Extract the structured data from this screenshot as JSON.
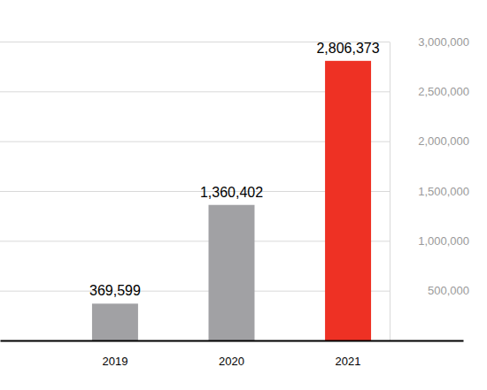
{
  "chart_data": {
    "type": "bar",
    "categories": [
      "2019",
      "2020",
      "2021"
    ],
    "values": [
      369599,
      1360402,
      2806373
    ],
    "value_labels": [
      "369,599",
      "1,360,402",
      "2,806,373"
    ],
    "colors": [
      "#a1a1a4",
      "#a1a1a4",
      "#ee3124"
    ],
    "ylim": [
      0,
      3000000
    ],
    "yticks": [
      {
        "value": 500000,
        "label": "500,000"
      },
      {
        "value": 1000000,
        "label": "1,000,000"
      },
      {
        "value": 1500000,
        "label": "1,500,000"
      },
      {
        "value": 2000000,
        "label": "2,000,000"
      },
      {
        "value": 2500000,
        "label": "2,500,000"
      },
      {
        "value": 3000000,
        "label": "3,000,000"
      }
    ],
    "grid": true,
    "data_labels": true
  }
}
